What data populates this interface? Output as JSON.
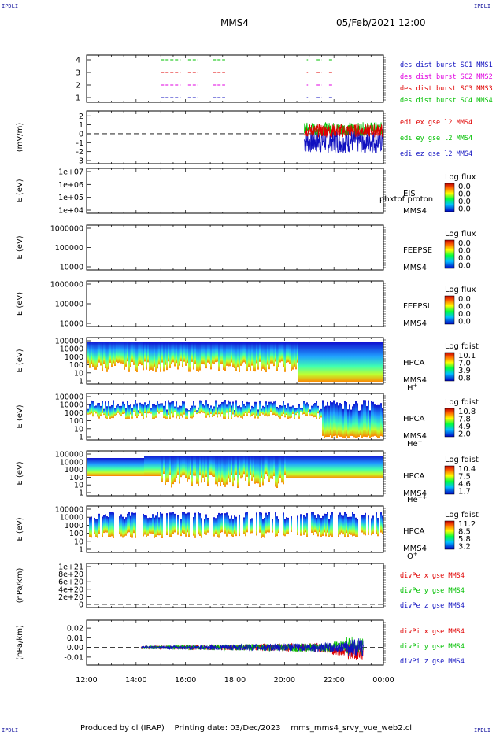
{
  "corners": {
    "tl": "IPDLI",
    "tr": "IPDLI",
    "bl": "IPDLI",
    "br": "IPDLI"
  },
  "header": {
    "spacecraft": "MMS4",
    "datetime": "05/Feb/2021 12:00"
  },
  "footer": {
    "text": "Produced by cl (IRAP)    Printing date: 03/Dec/2023    mms_mms4_srvy_vue_web2.cl"
  },
  "x_axis": {
    "ticks": [
      "12:00",
      "14:00",
      "16:00",
      "18:00",
      "20:00",
      "22:00",
      "00:00"
    ]
  },
  "colors": {
    "blue": "#1010c0",
    "red": "#e00000",
    "green": "#00c000",
    "magenta": "#e000e0",
    "spec_low": "#3060ff",
    "spec_mid": "#50e0d0",
    "spec_hi": "#e8ff40",
    "spec_max": "#ff6000"
  },
  "chart_data": [
    {
      "type": "line",
      "panel": "burst",
      "ylabel": "",
      "yticks": [
        "4",
        "3",
        "2",
        "1"
      ],
      "series": [
        {
          "name": "des dist burst SC1 MMS1",
          "color": "#1010c0",
          "y": 1,
          "segments": [
            [
              15.0,
              15.8
            ],
            [
              16.1,
              16.5
            ],
            [
              17.1,
              17.6
            ],
            [
              20.9,
              20.95
            ],
            [
              21.3,
              21.5
            ],
            [
              21.8,
              21.95
            ]
          ]
        },
        {
          "name": "des dist burst SC2 MMS2",
          "color": "#e000e0",
          "y": 2,
          "segments": [
            [
              15.0,
              15.8
            ],
            [
              16.1,
              16.5
            ],
            [
              17.1,
              17.6
            ],
            [
              20.9,
              20.95
            ],
            [
              21.3,
              21.5
            ],
            [
              21.8,
              21.95
            ]
          ]
        },
        {
          "name": "des dist burst SC3 MMS3",
          "color": "#e00000",
          "y": 3,
          "segments": [
            [
              15.0,
              15.8
            ],
            [
              16.1,
              16.5
            ],
            [
              17.1,
              17.6
            ],
            [
              20.9,
              20.95
            ],
            [
              21.3,
              21.5
            ],
            [
              21.8,
              21.95
            ]
          ]
        },
        {
          "name": "des dist burst SC4 MMS4",
          "color": "#00c000",
          "y": 4,
          "segments": [
            [
              15.0,
              15.8
            ],
            [
              16.1,
              16.5
            ],
            [
              17.1,
              17.6
            ],
            [
              20.9,
              20.95
            ],
            [
              21.3,
              21.5
            ],
            [
              21.8,
              21.95
            ]
          ]
        }
      ]
    },
    {
      "type": "line",
      "panel": "edi",
      "ylabel": "(mV/m)",
      "yticks": [
        "2",
        "1",
        "0",
        "-1",
        "-2",
        "-3"
      ],
      "ylim": [
        -3,
        2.2
      ],
      "x_range": [
        20.8,
        24.0
      ],
      "series": [
        {
          "name": "edi ex gse l2 MMS4",
          "color": "#e00000"
        },
        {
          "name": "edi ey gse l2 MMS4",
          "color": "#00c000"
        },
        {
          "name": "edi ez gse l2 MMS4",
          "color": "#1010c0"
        }
      ]
    },
    {
      "type": "heatmap",
      "panel": "eis",
      "ylabel": "E (eV)",
      "yticks": [
        "1e+07",
        "1e+06",
        "1e+05",
        "1e+04"
      ],
      "side_labels": [
        "EIS",
        "MMS4"
      ],
      "overlay_text": "phxtof proton",
      "colorbar": {
        "title": "Log flux",
        "values": [
          "0.0",
          "0.0",
          "0.0",
          "0.0"
        ]
      }
    },
    {
      "type": "heatmap",
      "panel": "feepse",
      "ylabel": "E (eV)",
      "yticks": [
        "1000000",
        "100000",
        "10000"
      ],
      "side_labels": [
        "FEEPSE",
        "MMS4"
      ],
      "colorbar": {
        "title": "Log flux",
        "values": [
          "0.0",
          "0.0",
          "0.0",
          "0.0"
        ]
      }
    },
    {
      "type": "heatmap",
      "panel": "feepsi",
      "ylabel": "E (eV)",
      "yticks": [
        "1000000",
        "100000",
        "10000"
      ],
      "side_labels": [
        "FEEPSI",
        "MMS4"
      ],
      "colorbar": {
        "title": "Log flux",
        "values": [
          "0.0",
          "0.0",
          "0.0",
          "0.0"
        ]
      }
    },
    {
      "type": "heatmap",
      "panel": "hpca_h",
      "ylabel": "E (eV)",
      "yticks": [
        "100000",
        "10000",
        "1000",
        "100",
        "10",
        "1"
      ],
      "side_labels": [
        "HPCA",
        "MMS4"
      ],
      "species": "H",
      "species_sup": "+",
      "colorbar": {
        "title": "Log fdist",
        "values": [
          "10.1",
          "7.0",
          "3.9",
          "0.8"
        ]
      }
    },
    {
      "type": "heatmap",
      "panel": "hpca_he",
      "ylabel": "E (eV)",
      "yticks": [
        "100000",
        "10000",
        "1000",
        "100",
        "10",
        "1"
      ],
      "side_labels": [
        "HPCA",
        "MMS4"
      ],
      "species": "He",
      "species_sup": "+",
      "colorbar": {
        "title": "Log fdist",
        "values": [
          "10.8",
          "7.8",
          "4.9",
          "2.0"
        ]
      }
    },
    {
      "type": "heatmap",
      "panel": "hpca_hepp",
      "ylabel": "E (eV)",
      "yticks": [
        "100000",
        "10000",
        "1000",
        "100",
        "10",
        "1"
      ],
      "side_labels": [
        "HPCA",
        "MMS4"
      ],
      "species": "He",
      "species_sup": "++",
      "colorbar": {
        "title": "Log fdist",
        "values": [
          "10.4",
          "7.5",
          "4.6",
          "1.7"
        ]
      }
    },
    {
      "type": "heatmap",
      "panel": "hpca_o",
      "ylabel": "E (eV)",
      "yticks": [
        "100000",
        "10000",
        "1000",
        "100",
        "10",
        "1"
      ],
      "side_labels": [
        "HPCA",
        "MMS4"
      ],
      "species": "O",
      "species_sup": "+",
      "colorbar": {
        "title": "Log fdist",
        "values": [
          "11.2",
          "8.5",
          "5.8",
          "3.2"
        ]
      }
    },
    {
      "type": "line",
      "panel": "divpe",
      "ylabel": "(nPa/km)",
      "yticks": [
        "1e+21",
        "8e+20",
        "6e+20",
        "4e+20",
        "2e+20",
        "0"
      ],
      "series": [
        {
          "name": "divPe x gse MMS4",
          "color": "#e00000"
        },
        {
          "name": "divPe y gse MMS4",
          "color": "#00c000"
        },
        {
          "name": "divPe z gse MMS4",
          "color": "#1010c0"
        }
      ]
    },
    {
      "type": "line",
      "panel": "divpi",
      "ylabel": "(nPa/km)",
      "yticks": [
        "0.02",
        "0.01",
        "0.00",
        "-0.01"
      ],
      "ylim": [
        -0.015,
        0.025
      ],
      "x_range": [
        14.2,
        23.2
      ],
      "series": [
        {
          "name": "divPi x gse MMS4",
          "color": "#e00000"
        },
        {
          "name": "divPi y gse MMS4",
          "color": "#00c000"
        },
        {
          "name": "divPi z gse MMS4",
          "color": "#1010c0"
        }
      ]
    }
  ]
}
